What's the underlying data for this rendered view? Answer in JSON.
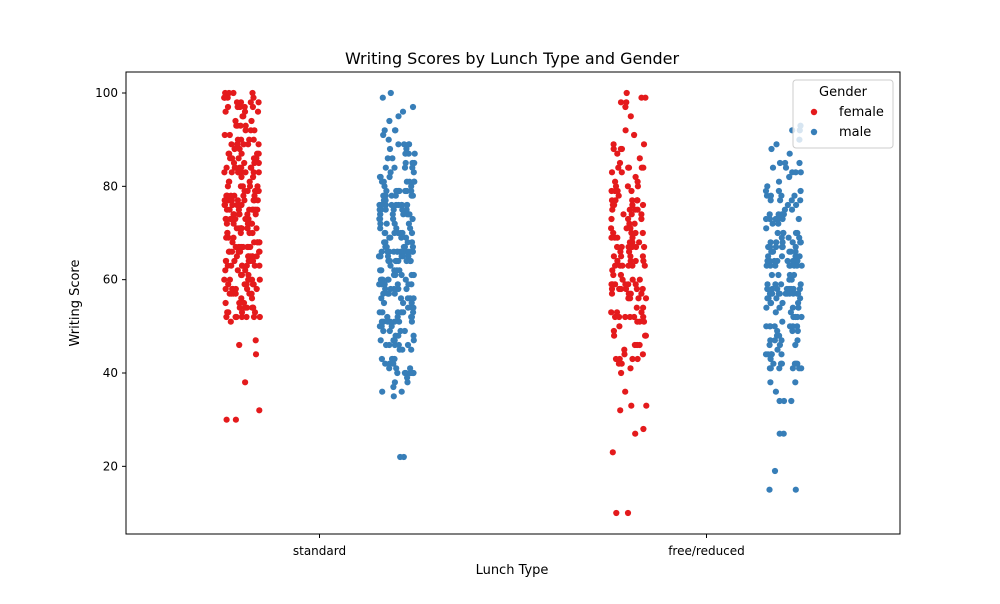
{
  "chart_data": {
    "type": "scatter",
    "subtype": "strip",
    "title": "Writing Scores by Lunch Type and Gender",
    "xlabel": "Lunch Type",
    "ylabel": "Writing Score",
    "categories": [
      "standard",
      "free/reduced"
    ],
    "ylim": [
      5.5,
      104.5
    ],
    "yticks": [
      20,
      40,
      60,
      80,
      100
    ],
    "grid": false,
    "legend": {
      "title": "Gender",
      "placement": "top-right"
    },
    "series": [
      {
        "name": "female",
        "color": "#e41a1c",
        "groups": [
          {
            "category": "standard",
            "count": 258,
            "min": 30,
            "max": 100,
            "median": 75,
            "outliers": [
              30,
              32,
              38,
              44,
              46,
              47
            ],
            "bands": [
              {
                "low": 50,
                "high": 60,
                "count": 42
              },
              {
                "low": 60,
                "high": 70,
                "count": 58
              },
              {
                "low": 70,
                "high": 80,
                "count": 70
              },
              {
                "low": 80,
                "high": 90,
                "count": 48
              },
              {
                "low": 90,
                "high": 100,
                "count": 34
              }
            ]
          },
          {
            "category": "free/reduced",
            "count": 160,
            "min": 10,
            "max": 100,
            "median": 68,
            "outliers": [
              10,
              23,
              27,
              28,
              32,
              33,
              33,
              36
            ],
            "bands": [
              {
                "low": 40,
                "high": 50,
                "count": 18
              },
              {
                "low": 50,
                "high": 60,
                "count": 36
              },
              {
                "low": 60,
                "high": 70,
                "count": 38
              },
              {
                "low": 70,
                "high": 80,
                "count": 34
              },
              {
                "low": 80,
                "high": 90,
                "count": 18
              },
              {
                "low": 90,
                "high": 100,
                "count": 8
              }
            ]
          }
        ]
      },
      {
        "name": "male",
        "color": "#377eb8",
        "groups": [
          {
            "category": "standard",
            "count": 254,
            "min": 22,
            "max": 100,
            "median": 67,
            "outliers": [
              22,
              35,
              36,
              36,
              37
            ],
            "bands": [
              {
                "low": 38,
                "high": 50,
                "count": 40
              },
              {
                "low": 50,
                "high": 60,
                "count": 50
              },
              {
                "low": 60,
                "high": 70,
                "count": 60
              },
              {
                "low": 70,
                "high": 80,
                "count": 58
              },
              {
                "low": 80,
                "high": 90,
                "count": 32
              },
              {
                "low": 90,
                "high": 100,
                "count": 9
              }
            ]
          },
          {
            "category": "free/reduced",
            "count": 190,
            "min": 15,
            "max": 93,
            "median": 58,
            "outliers": [
              15,
              19,
              27,
              27,
              34,
              34,
              34,
              36,
              38,
              38
            ],
            "bands": [
              {
                "low": 40,
                "high": 50,
                "count": 36
              },
              {
                "low": 50,
                "high": 60,
                "count": 48
              },
              {
                "low": 60,
                "high": 70,
                "count": 48
              },
              {
                "low": 70,
                "high": 80,
                "count": 32
              },
              {
                "low": 80,
                "high": 93,
                "count": 16
              }
            ]
          }
        ]
      }
    ]
  }
}
